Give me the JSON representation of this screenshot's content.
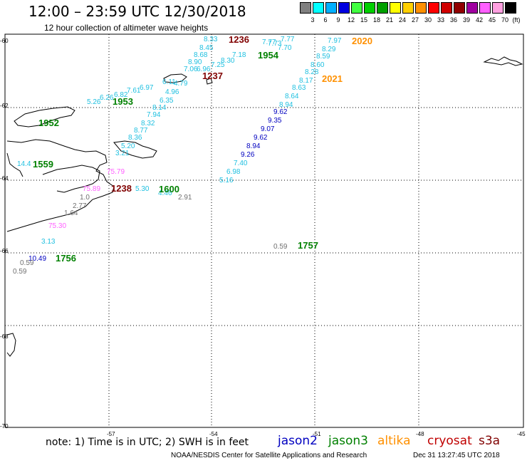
{
  "title": "12:00 – 23:59 UTC 12/30/2018",
  "subtitle": "12 hour collection of altimeter wave heights",
  "colorbar": {
    "unit": "(ft)",
    "colors": [
      "#808080",
      "#00ffff",
      "#00b0ff",
      "#0000e0",
      "#40ff40",
      "#00d000",
      "#00a000",
      "#ffff00",
      "#ffd000",
      "#ff9000",
      "#ff0000",
      "#d00000",
      "#900000",
      "#a000a0",
      "#ff60ff",
      "#ffa0e0",
      "#000000"
    ],
    "labels": [
      "3",
      "6",
      "9",
      "12",
      "15",
      "18",
      "21",
      "24",
      "27",
      "30",
      "33",
      "36",
      "39",
      "42",
      "45",
      "70"
    ]
  },
  "axes": {
    "lat_labels": [
      "-60",
      "-62",
      "-64",
      "-66",
      "-68",
      "-70"
    ],
    "lon_labels": [
      "-57",
      "-54",
      "-51",
      "-48",
      "-45"
    ]
  },
  "colors": {
    "jason2": "#0000c0",
    "jason3": "#008000",
    "altika": "#ff9000",
    "cryosat": "#c00000",
    "s3a": "#800000",
    "cyan": "#20c0e0",
    "blue": "#0000c0",
    "grey": "#707070",
    "pink": "#ff60ff"
  },
  "time_labels": [
    {
      "text": "1236",
      "color": "s3a"
    },
    {
      "text": "1954",
      "color": "jason3"
    },
    {
      "text": "2020",
      "color": "altika"
    },
    {
      "text": "1237",
      "color": "s3a"
    },
    {
      "text": "2021",
      "color": "altika"
    },
    {
      "text": "1953",
      "color": "jason3"
    },
    {
      "text": "1952",
      "color": "jason3"
    },
    {
      "text": "1559",
      "color": "jason3"
    },
    {
      "text": "1238",
      "color": "s3a"
    },
    {
      "text": "1600",
      "color": "jason3"
    },
    {
      "text": "1757",
      "color": "jason3"
    },
    {
      "text": "1756",
      "color": "jason3"
    }
  ],
  "wave_heights": [
    {
      "v": "8.33",
      "c": "cyan"
    },
    {
      "v": "8.45",
      "c": "cyan"
    },
    {
      "v": "8.68",
      "c": "cyan"
    },
    {
      "v": "8.90",
      "c": "cyan"
    },
    {
      "v": "7.25",
      "c": "cyan"
    },
    {
      "v": "8.30",
      "c": "cyan"
    },
    {
      "v": "7.18",
      "c": "cyan"
    },
    {
      "v": "7.77",
      "c": "cyan"
    },
    {
      "v": "7.73",
      "c": "cyan"
    },
    {
      "v": "7.70",
      "c": "cyan"
    },
    {
      "v": "7.77",
      "c": "cyan"
    },
    {
      "v": "7.06",
      "c": "cyan"
    },
    {
      "v": "6.96",
      "c": "cyan"
    },
    {
      "v": "6.11",
      "c": "cyan"
    },
    {
      "v": "4.79",
      "c": "cyan"
    },
    {
      "v": "6.97",
      "c": "cyan"
    },
    {
      "v": "7.61",
      "c": "cyan"
    },
    {
      "v": "6.82",
      "c": "cyan"
    },
    {
      "v": "6.26",
      "c": "cyan"
    },
    {
      "v": "5.26",
      "c": "cyan"
    },
    {
      "v": "4.96",
      "c": "cyan"
    },
    {
      "v": "6.35",
      "c": "cyan"
    },
    {
      "v": "8.14",
      "c": "cyan"
    },
    {
      "v": "7.94",
      "c": "cyan"
    },
    {
      "v": "8.32",
      "c": "cyan"
    },
    {
      "v": "8.77",
      "c": "cyan"
    },
    {
      "v": "8.36",
      "c": "cyan"
    },
    {
      "v": "5.20",
      "c": "cyan"
    },
    {
      "v": "3.21",
      "c": "cyan"
    },
    {
      "v": "7.97",
      "c": "cyan"
    },
    {
      "v": "8.29",
      "c": "cyan"
    },
    {
      "v": "8.59",
      "c": "cyan"
    },
    {
      "v": "8.60",
      "c": "cyan"
    },
    {
      "v": "8.28",
      "c": "cyan"
    },
    {
      "v": "8.17",
      "c": "cyan"
    },
    {
      "v": "8.63",
      "c": "cyan"
    },
    {
      "v": "8.64",
      "c": "cyan"
    },
    {
      "v": "8.94",
      "c": "cyan"
    },
    {
      "v": "9.62",
      "c": "blue"
    },
    {
      "v": "9.35",
      "c": "blue"
    },
    {
      "v": "9.07",
      "c": "blue"
    },
    {
      "v": "9.62",
      "c": "blue"
    },
    {
      "v": "8.94",
      "c": "blue"
    },
    {
      "v": "9.26",
      "c": "blue"
    },
    {
      "v": "7.40",
      "c": "cyan"
    },
    {
      "v": "6.98",
      "c": "cyan"
    },
    {
      "v": "5.16",
      "c": "cyan"
    },
    {
      "v": "14.4",
      "c": "cyan"
    },
    {
      "v": "75.89",
      "c": "pink"
    },
    {
      "v": "75.79",
      "c": "pink"
    },
    {
      "v": "5.30",
      "c": "cyan"
    },
    {
      "v": "4.46",
      "c": "cyan"
    },
    {
      "v": "2.91",
      "c": "grey"
    },
    {
      "v": "1.0",
      "c": "grey"
    },
    {
      "v": "2.77",
      "c": "grey"
    },
    {
      "v": "1.64",
      "c": "grey"
    },
    {
      "v": "75.30",
      "c": "pink"
    },
    {
      "v": "3.13",
      "c": "cyan"
    },
    {
      "v": "10.49",
      "c": "blue"
    },
    {
      "v": "0.59",
      "c": "grey"
    },
    {
      "v": "0.59",
      "c": "grey"
    },
    {
      "v": "0.59",
      "c": "grey"
    }
  ],
  "note": "note:  1) Time is in UTC;  2) SWH is in feet",
  "satellites": [
    "jason2",
    "jason3",
    "altika",
    "cryosat",
    "s3a"
  ],
  "credit": "NOAA/NESDIS Center for Satellite Applications and Research",
  "credit_time": "Dec 31 13:27:45 UTC 2018"
}
